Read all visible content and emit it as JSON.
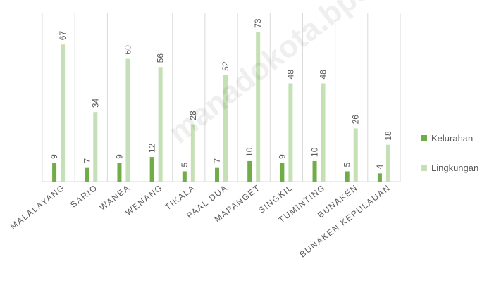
{
  "chart_data": {
    "type": "bar",
    "categories": [
      "MALALAYANG",
      "SARIO",
      "WANEA",
      "WENANG",
      "TIKALA",
      "PAAL DUA",
      "MAPANGET",
      "SINGKIL",
      "TUMINTING",
      "BUNAKEN",
      "BUNAKEN KEPULAUAN"
    ],
    "series": [
      {
        "name": "Kelurahan",
        "values": [
          9,
          7,
          9,
          12,
          5,
          7,
          10,
          9,
          10,
          5,
          4
        ],
        "color": "#70ad47"
      },
      {
        "name": "Lingkungan",
        "values": [
          67,
          34,
          60,
          56,
          28,
          52,
          73,
          48,
          48,
          26,
          18
        ],
        "color": "#c5e0b4"
      }
    ],
    "title": "",
    "xlabel": "",
    "ylabel": "",
    "ylim": [
      0,
      75
    ],
    "grid": "vertical-category-separators",
    "legend_position": "right",
    "data_labels": true
  },
  "watermark": "manadokota.bps.go.id"
}
